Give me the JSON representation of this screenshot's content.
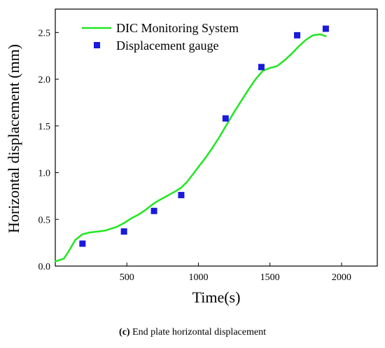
{
  "chart_data": {
    "type": "line",
    "xlabel": "Time(s)",
    "ylabel": "Horizontal displacement (mm)",
    "xlim": [
      0,
      2250
    ],
    "ylim": [
      0,
      2.75
    ],
    "x_ticks": [
      500,
      1000,
      1500,
      2000
    ],
    "y_ticks": [
      0.0,
      0.5,
      1.0,
      1.5,
      2.0,
      2.5
    ],
    "x_tick_labels": [
      "500",
      "1000",
      "1500",
      "2000"
    ],
    "y_tick_labels": [
      "0.0",
      "0.5",
      "1.0",
      "1.5",
      "2.0",
      "2.5"
    ],
    "legend_position": "top-left",
    "grid": false,
    "series": [
      {
        "name": "DIC Monitoring System",
        "kind": "line",
        "color": "#22e622",
        "x": [
          0,
          60,
          90,
          140,
          190,
          240,
          300,
          350,
          390,
          430,
          480,
          530,
          580,
          630,
          680,
          720,
          780,
          840,
          880,
          920,
          960,
          1000,
          1050,
          1100,
          1150,
          1200,
          1250,
          1300,
          1350,
          1400,
          1450,
          1500,
          1550,
          1600,
          1650,
          1700,
          1750,
          1800,
          1850,
          1890
        ],
        "y": [
          0.05,
          0.08,
          0.15,
          0.28,
          0.34,
          0.36,
          0.37,
          0.38,
          0.4,
          0.42,
          0.46,
          0.51,
          0.55,
          0.6,
          0.66,
          0.7,
          0.75,
          0.8,
          0.84,
          0.9,
          0.98,
          1.06,
          1.16,
          1.27,
          1.39,
          1.52,
          1.65,
          1.77,
          1.89,
          2.0,
          2.09,
          2.12,
          2.14,
          2.2,
          2.27,
          2.35,
          2.42,
          2.47,
          2.48,
          2.46
        ]
      },
      {
        "name": "Displacement gauge",
        "kind": "scatter",
        "color": "#1a1adc",
        "x": [
          190,
          480,
          690,
          880,
          1190,
          1440,
          1690,
          1890
        ],
        "y": [
          0.24,
          0.37,
          0.59,
          0.76,
          1.58,
          2.13,
          2.47,
          2.54
        ]
      }
    ]
  },
  "caption": {
    "label": "(c)",
    "text": " End plate horizontal displacement"
  }
}
